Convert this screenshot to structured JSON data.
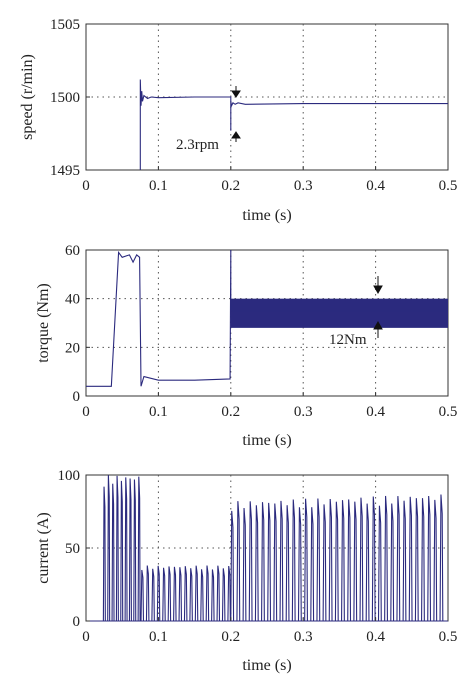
{
  "chart_data": [
    {
      "type": "line",
      "xlabel": "time (s)",
      "ylabel": "speed (r/min)",
      "xlim": [
        0,
        0.5
      ],
      "ylim": [
        1495,
        1505
      ],
      "xticks": [
        "0",
        "0.1",
        "0.2",
        "0.3",
        "0.4",
        "0.5"
      ],
      "yticks": [
        "1495",
        "1500",
        "1505"
      ],
      "grid": true,
      "annotations": [
        {
          "text": "2.3rpm",
          "x": 0.205,
          "y": 1497.5
        }
      ],
      "series": [
        {
          "x": [
            0.075,
            0.075,
            0.076,
            0.077,
            0.078,
            0.08,
            0.085,
            0.09,
            0.1,
            0.15,
            0.198,
            0.2,
            0.2,
            0.2,
            0.201,
            0.203,
            0.206,
            0.21,
            0.22,
            0.3,
            0.4,
            0.5
          ],
          "values": [
            1495,
            1501.2,
            1499.4,
            1500.4,
            1499.7,
            1500.1,
            1499.9,
            1500.0,
            1499.95,
            1500.0,
            1500.0,
            1500.0,
            1497.7,
            1499.7,
            1499.4,
            1499.6,
            1499.5,
            1499.6,
            1499.5,
            1499.55,
            1499.55,
            1499.55
          ]
        }
      ]
    },
    {
      "type": "line",
      "xlabel": "time (s)",
      "ylabel": "torque (Nm)",
      "xlim": [
        0,
        0.5
      ],
      "ylim": [
        0,
        60
      ],
      "xticks": [
        "0",
        "0.1",
        "0.2",
        "0.3",
        "0.4",
        "0.5"
      ],
      "yticks": [
        "0",
        "20",
        "40",
        "60"
      ],
      "grid": true,
      "annotations": [
        {
          "text": "12Nm",
          "x": 0.4,
          "y": 34
        }
      ],
      "series": [
        {
          "x": [
            0.0,
            0.035,
            0.045,
            0.05,
            0.06,
            0.065,
            0.07,
            0.074,
            0.076,
            0.08,
            0.1,
            0.15,
            0.199,
            0.2,
            0.2,
            0.2,
            0.21,
            0.5
          ],
          "values": [
            4,
            4,
            59,
            57,
            58,
            55,
            58,
            57,
            4,
            8,
            6.5,
            6.5,
            7,
            60,
            36,
            35,
            35,
            35
          ],
          "band": {
            "x": [
              0.2,
              0.5
            ],
            "low": 28,
            "high": 40
          }
        }
      ]
    },
    {
      "type": "line",
      "xlabel": "time (s)",
      "ylabel": "current (A)",
      "xlim": [
        0,
        0.5
      ],
      "ylim": [
        0,
        100
      ],
      "xticks": [
        "0",
        "0.1",
        "0.2",
        "0.3",
        "0.4",
        "0.5"
      ],
      "yticks": [
        "0",
        "50",
        "100"
      ],
      "grid": true,
      "series": [
        {
          "segments": [
            {
              "from": 0.024,
              "to": 0.076,
              "amp_start": 100,
              "amp_end": 100,
              "period": 0.006
            },
            {
              "from": 0.076,
              "to": 0.2,
              "amp_start": 38,
              "amp_end": 38,
              "period": 0.0075
            },
            {
              "from": 0.2,
              "to": 0.5,
              "amp_start": 82,
              "amp_end": 87,
              "period": 0.0085
            }
          ]
        }
      ]
    }
  ]
}
